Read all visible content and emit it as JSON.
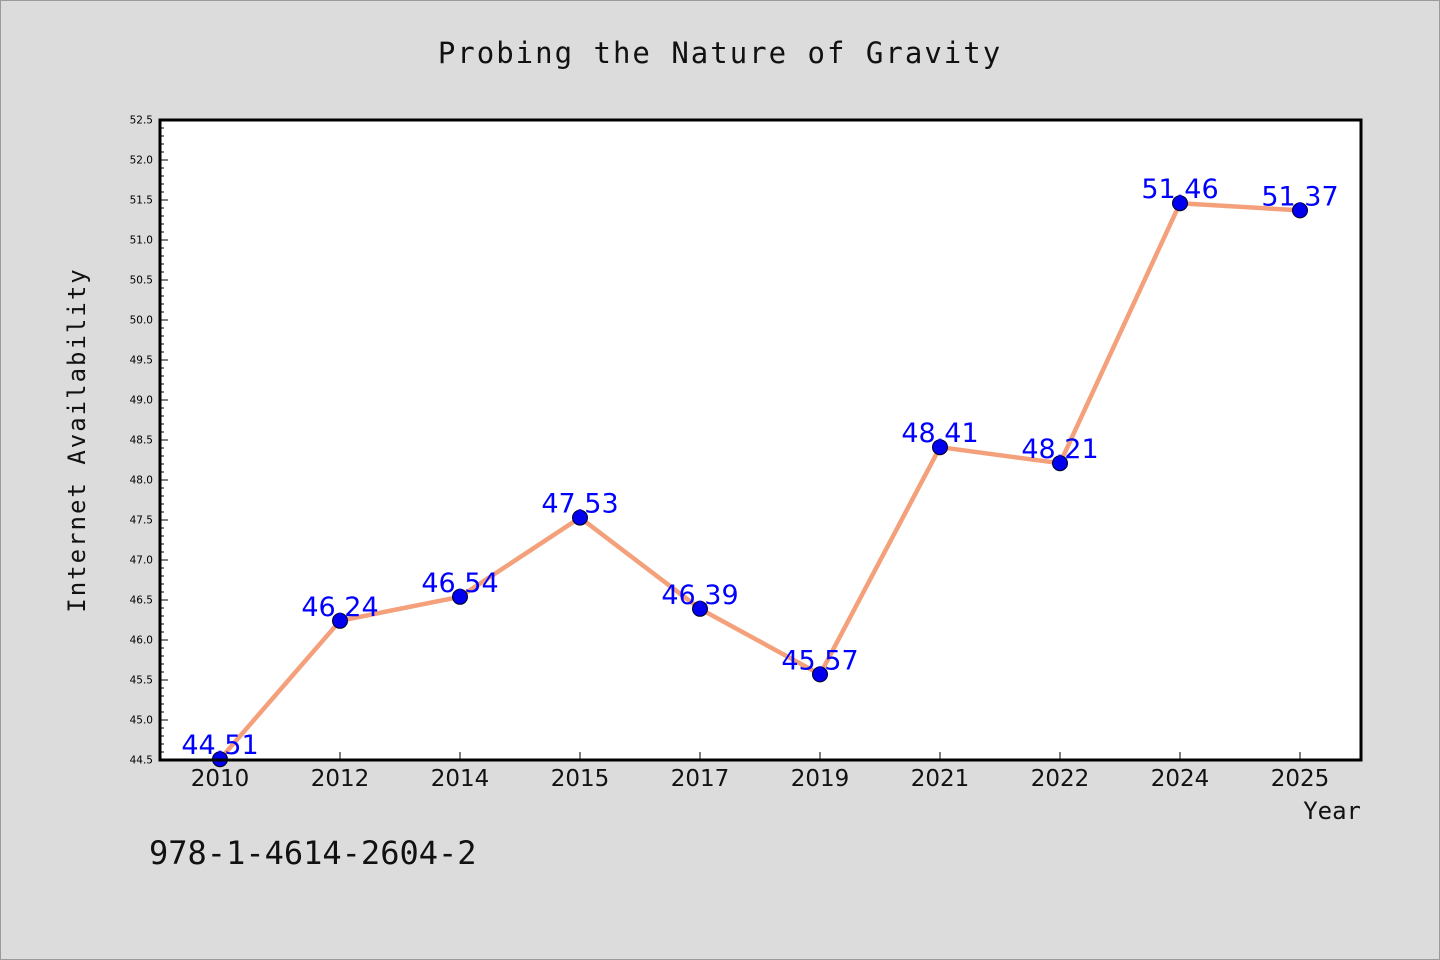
{
  "chart_data": {
    "type": "line",
    "title": "Probing the Nature of Gravity",
    "xlabel": "Year",
    "ylabel": "Internet Availability",
    "categories": [
      "2010",
      "2012",
      "2014",
      "2015",
      "2017",
      "2019",
      "2021",
      "2022",
      "2024",
      "2025"
    ],
    "series": [
      {
        "values": [
          44.51,
          46.24,
          46.54,
          47.53,
          46.39,
          45.57,
          48.41,
          48.21,
          51.46,
          51.37
        ],
        "data_labels": [
          "44.51",
          "46.24",
          "46.54",
          "47.53",
          "46.39",
          "45.57",
          "48.41",
          "48.21",
          "51.46",
          "51.37"
        ]
      }
    ],
    "ylim": [
      44.5,
      52.5
    ],
    "yticks": [
      "44.5",
      "45.0",
      "45.5",
      "46.0",
      "46.5",
      "47.0",
      "47.5",
      "48.0",
      "48.5",
      "49.0",
      "49.5",
      "50.0",
      "50.5",
      "51.0",
      "51.5",
      "52.0",
      "52.5"
    ],
    "grid": false,
    "legend": "none",
    "colors": {
      "line": "#f4a07a",
      "marker": "#0000ee",
      "label": "#0000ff",
      "background": "#dcdcdc",
      "plot_background": "#ffffff"
    }
  },
  "caption": "978-1-4614-2604-2"
}
